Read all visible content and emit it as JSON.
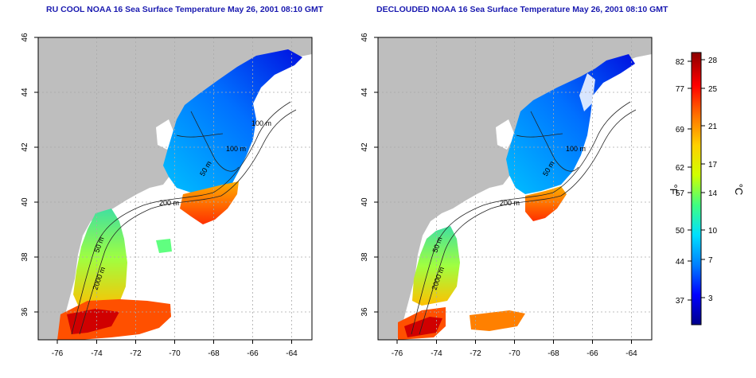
{
  "panels": [
    {
      "title": "RU COOL NOAA 16 Sea Surface Temperature May 26, 2001 08:10 GMT",
      "x_ticks": [
        "-76",
        "-74",
        "-72",
        "-70",
        "-68",
        "-66",
        "-64"
      ],
      "y_ticks": [
        "36",
        "38",
        "40",
        "42",
        "44",
        "46"
      ],
      "contour_labels": [
        "100 m",
        "100 m",
        "50 m",
        "200 m",
        "50 m",
        "2000 m"
      ]
    },
    {
      "title": "DECLOUDED NOAA 16 Sea Surface Temperature May 26, 2001 08:10 GMT",
      "x_ticks": [
        "-76",
        "-74",
        "-72",
        "-70",
        "-68",
        "-66",
        "-64"
      ],
      "y_ticks": [
        "36",
        "38",
        "40",
        "42",
        "44",
        "46"
      ],
      "contour_labels": [
        "100 m",
        "50 m",
        "200 m",
        "50 m",
        "2000 m"
      ]
    }
  ],
  "colorbar": {
    "fahrenheit_label": "°F",
    "celsius_label": "°C",
    "fahrenheit_ticks": [
      "82",
      "77",
      "69",
      "62",
      "57",
      "50",
      "44",
      "37"
    ],
    "celsius_ticks": [
      "28",
      "25",
      "21",
      "17",
      "14",
      "10",
      "7",
      "3"
    ],
    "colors": [
      "#00008b",
      "#0000ff",
      "#0080ff",
      "#00e0ff",
      "#40ff80",
      "#d0ff00",
      "#ffd000",
      "#ff7000",
      "#ff0000",
      "#8b0000"
    ]
  },
  "colors": {
    "land": "#bebebe",
    "ocean_no_data": "#ffffff",
    "title": "#1a1ab0"
  }
}
